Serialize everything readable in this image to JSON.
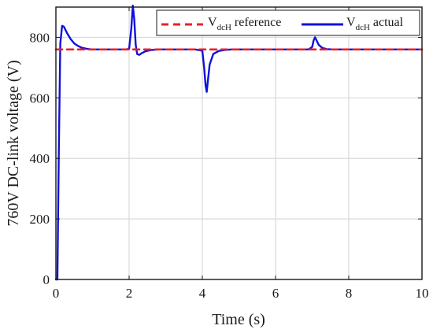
{
  "chart_data": {
    "type": "line",
    "xlabel": "Time (s)",
    "ylabel": "760V DC-link voltage (V)",
    "xlim": [
      0,
      10
    ],
    "ylim": [
      0,
      900
    ],
    "xticks": [
      "0",
      "2",
      "4",
      "6",
      "8",
      "10"
    ],
    "yticks": [
      "0",
      "200",
      "400",
      "600",
      "800"
    ],
    "grid": true,
    "legend_position": "top-right",
    "series": [
      {
        "name": "V_dcH reference",
        "legend_main": "V",
        "legend_sub": "dcH",
        "legend_rest": " reference",
        "style": "dashed",
        "color": "#e8212a",
        "x": [
          0,
          10
        ],
        "y": [
          760,
          760
        ]
      },
      {
        "name": "V_dcH actual",
        "legend_main": "V",
        "legend_sub": "dcH",
        "legend_rest": " actual",
        "style": "solid",
        "color": "#1010dd",
        "x": [
          0,
          0.04,
          0.08,
          0.12,
          0.17,
          0.22,
          0.3,
          0.4,
          0.5,
          0.6,
          0.7,
          0.85,
          1.0,
          1.5,
          1.9,
          2.0,
          2.06,
          2.1,
          2.14,
          2.18,
          2.22,
          2.28,
          2.35,
          2.45,
          2.6,
          2.8,
          3.2,
          3.8,
          4.0,
          4.05,
          4.09,
          4.12,
          4.15,
          4.2,
          4.3,
          4.45,
          4.6,
          4.8,
          5.2,
          6.0,
          6.9,
          7.0,
          7.04,
          7.08,
          7.12,
          7.18,
          7.28,
          7.4,
          7.6,
          7.9,
          8.5,
          9.2,
          10.0
        ],
        "y": [
          0,
          0,
          420,
          780,
          838,
          835,
          815,
          795,
          780,
          772,
          766,
          762,
          760,
          760,
          760,
          762,
          830,
          905,
          860,
          775,
          745,
          742,
          748,
          754,
          758,
          760,
          760,
          760,
          756,
          700,
          640,
          620,
          655,
          710,
          745,
          755,
          758,
          760,
          760,
          760,
          760,
          768,
          790,
          800,
          790,
          775,
          765,
          761,
          760,
          760,
          760,
          760,
          760
        ]
      }
    ]
  }
}
